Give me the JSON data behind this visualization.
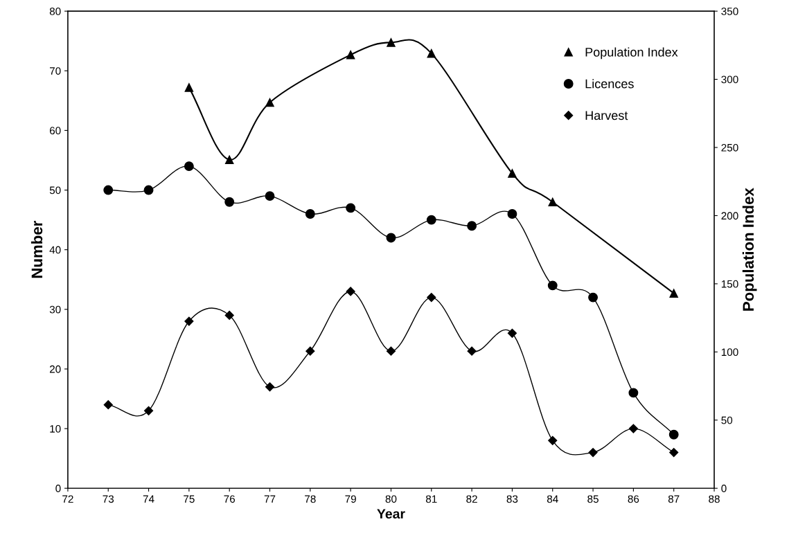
{
  "chart_data": {
    "type": "line",
    "xlabel": "Year",
    "ylabel": "Number",
    "y2label": "Population Index",
    "x": [
      73,
      74,
      75,
      76,
      77,
      78,
      79,
      80,
      81,
      82,
      83,
      84,
      85,
      86,
      87
    ],
    "xlim": [
      72,
      88
    ],
    "xticks": [
      72,
      73,
      74,
      75,
      76,
      77,
      78,
      79,
      80,
      81,
      82,
      83,
      84,
      85,
      86,
      87,
      88
    ],
    "ylim": [
      0,
      80
    ],
    "yticks": [
      0,
      10,
      20,
      30,
      40,
      50,
      60,
      70,
      80
    ],
    "y2lim": [
      0,
      350
    ],
    "y2ticks": [
      0,
      50,
      100,
      150,
      200,
      250,
      300,
      350
    ],
    "grid": false,
    "legend": "top right",
    "line_style": "solid",
    "series": [
      {
        "name": "Population Index",
        "color": "#000000",
        "axis": "y2",
        "marker": "triangle",
        "x": [
          75,
          76,
          77,
          79,
          80,
          81,
          83,
          84,
          87
        ],
        "values": [
          294,
          241,
          283,
          318,
          327,
          319,
          231,
          210,
          143
        ]
      },
      {
        "name": "Licences",
        "color": "#000000",
        "marker": "circle",
        "values": [
          50,
          50,
          54,
          48,
          49,
          46,
          47,
          42,
          45,
          44,
          46,
          34,
          32,
          16,
          9
        ]
      },
      {
        "name": "Harvest",
        "color": "#000000",
        "marker": "diamond",
        "values": [
          14,
          13,
          28,
          29,
          17,
          23,
          33,
          23,
          32,
          23,
          26,
          8,
          6,
          10,
          6
        ]
      }
    ]
  }
}
